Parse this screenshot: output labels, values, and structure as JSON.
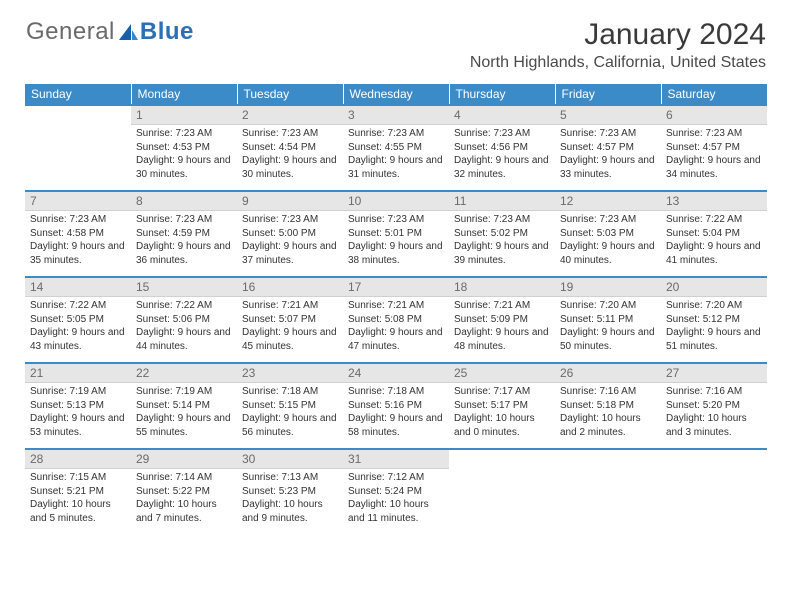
{
  "brand": {
    "part1": "General",
    "part2": "Blue"
  },
  "title": "January 2024",
  "subtitle": "North Highlands, California, United States",
  "colors": {
    "header_bg": "#3b8bc9",
    "header_text": "#ffffff",
    "daynum_bg": "#e6e6e6",
    "text": "#333333"
  },
  "weekdays": [
    "Sunday",
    "Monday",
    "Tuesday",
    "Wednesday",
    "Thursday",
    "Friday",
    "Saturday"
  ],
  "weeks": [
    [
      {
        "num": "",
        "sunrise": "",
        "sunset": "",
        "daylight": ""
      },
      {
        "num": "1",
        "sunrise": "Sunrise: 7:23 AM",
        "sunset": "Sunset: 4:53 PM",
        "daylight": "Daylight: 9 hours and 30 minutes."
      },
      {
        "num": "2",
        "sunrise": "Sunrise: 7:23 AM",
        "sunset": "Sunset: 4:54 PM",
        "daylight": "Daylight: 9 hours and 30 minutes."
      },
      {
        "num": "3",
        "sunrise": "Sunrise: 7:23 AM",
        "sunset": "Sunset: 4:55 PM",
        "daylight": "Daylight: 9 hours and 31 minutes."
      },
      {
        "num": "4",
        "sunrise": "Sunrise: 7:23 AM",
        "sunset": "Sunset: 4:56 PM",
        "daylight": "Daylight: 9 hours and 32 minutes."
      },
      {
        "num": "5",
        "sunrise": "Sunrise: 7:23 AM",
        "sunset": "Sunset: 4:57 PM",
        "daylight": "Daylight: 9 hours and 33 minutes."
      },
      {
        "num": "6",
        "sunrise": "Sunrise: 7:23 AM",
        "sunset": "Sunset: 4:57 PM",
        "daylight": "Daylight: 9 hours and 34 minutes."
      }
    ],
    [
      {
        "num": "7",
        "sunrise": "Sunrise: 7:23 AM",
        "sunset": "Sunset: 4:58 PM",
        "daylight": "Daylight: 9 hours and 35 minutes."
      },
      {
        "num": "8",
        "sunrise": "Sunrise: 7:23 AM",
        "sunset": "Sunset: 4:59 PM",
        "daylight": "Daylight: 9 hours and 36 minutes."
      },
      {
        "num": "9",
        "sunrise": "Sunrise: 7:23 AM",
        "sunset": "Sunset: 5:00 PM",
        "daylight": "Daylight: 9 hours and 37 minutes."
      },
      {
        "num": "10",
        "sunrise": "Sunrise: 7:23 AM",
        "sunset": "Sunset: 5:01 PM",
        "daylight": "Daylight: 9 hours and 38 minutes."
      },
      {
        "num": "11",
        "sunrise": "Sunrise: 7:23 AM",
        "sunset": "Sunset: 5:02 PM",
        "daylight": "Daylight: 9 hours and 39 minutes."
      },
      {
        "num": "12",
        "sunrise": "Sunrise: 7:23 AM",
        "sunset": "Sunset: 5:03 PM",
        "daylight": "Daylight: 9 hours and 40 minutes."
      },
      {
        "num": "13",
        "sunrise": "Sunrise: 7:22 AM",
        "sunset": "Sunset: 5:04 PM",
        "daylight": "Daylight: 9 hours and 41 minutes."
      }
    ],
    [
      {
        "num": "14",
        "sunrise": "Sunrise: 7:22 AM",
        "sunset": "Sunset: 5:05 PM",
        "daylight": "Daylight: 9 hours and 43 minutes."
      },
      {
        "num": "15",
        "sunrise": "Sunrise: 7:22 AM",
        "sunset": "Sunset: 5:06 PM",
        "daylight": "Daylight: 9 hours and 44 minutes."
      },
      {
        "num": "16",
        "sunrise": "Sunrise: 7:21 AM",
        "sunset": "Sunset: 5:07 PM",
        "daylight": "Daylight: 9 hours and 45 minutes."
      },
      {
        "num": "17",
        "sunrise": "Sunrise: 7:21 AM",
        "sunset": "Sunset: 5:08 PM",
        "daylight": "Daylight: 9 hours and 47 minutes."
      },
      {
        "num": "18",
        "sunrise": "Sunrise: 7:21 AM",
        "sunset": "Sunset: 5:09 PM",
        "daylight": "Daylight: 9 hours and 48 minutes."
      },
      {
        "num": "19",
        "sunrise": "Sunrise: 7:20 AM",
        "sunset": "Sunset: 5:11 PM",
        "daylight": "Daylight: 9 hours and 50 minutes."
      },
      {
        "num": "20",
        "sunrise": "Sunrise: 7:20 AM",
        "sunset": "Sunset: 5:12 PM",
        "daylight": "Daylight: 9 hours and 51 minutes."
      }
    ],
    [
      {
        "num": "21",
        "sunrise": "Sunrise: 7:19 AM",
        "sunset": "Sunset: 5:13 PM",
        "daylight": "Daylight: 9 hours and 53 minutes."
      },
      {
        "num": "22",
        "sunrise": "Sunrise: 7:19 AM",
        "sunset": "Sunset: 5:14 PM",
        "daylight": "Daylight: 9 hours and 55 minutes."
      },
      {
        "num": "23",
        "sunrise": "Sunrise: 7:18 AM",
        "sunset": "Sunset: 5:15 PM",
        "daylight": "Daylight: 9 hours and 56 minutes."
      },
      {
        "num": "24",
        "sunrise": "Sunrise: 7:18 AM",
        "sunset": "Sunset: 5:16 PM",
        "daylight": "Daylight: 9 hours and 58 minutes."
      },
      {
        "num": "25",
        "sunrise": "Sunrise: 7:17 AM",
        "sunset": "Sunset: 5:17 PM",
        "daylight": "Daylight: 10 hours and 0 minutes."
      },
      {
        "num": "26",
        "sunrise": "Sunrise: 7:16 AM",
        "sunset": "Sunset: 5:18 PM",
        "daylight": "Daylight: 10 hours and 2 minutes."
      },
      {
        "num": "27",
        "sunrise": "Sunrise: 7:16 AM",
        "sunset": "Sunset: 5:20 PM",
        "daylight": "Daylight: 10 hours and 3 minutes."
      }
    ],
    [
      {
        "num": "28",
        "sunrise": "Sunrise: 7:15 AM",
        "sunset": "Sunset: 5:21 PM",
        "daylight": "Daylight: 10 hours and 5 minutes."
      },
      {
        "num": "29",
        "sunrise": "Sunrise: 7:14 AM",
        "sunset": "Sunset: 5:22 PM",
        "daylight": "Daylight: 10 hours and 7 minutes."
      },
      {
        "num": "30",
        "sunrise": "Sunrise: 7:13 AM",
        "sunset": "Sunset: 5:23 PM",
        "daylight": "Daylight: 10 hours and 9 minutes."
      },
      {
        "num": "31",
        "sunrise": "Sunrise: 7:12 AM",
        "sunset": "Sunset: 5:24 PM",
        "daylight": "Daylight: 10 hours and 11 minutes."
      },
      {
        "num": "",
        "sunrise": "",
        "sunset": "",
        "daylight": ""
      },
      {
        "num": "",
        "sunrise": "",
        "sunset": "",
        "daylight": ""
      },
      {
        "num": "",
        "sunrise": "",
        "sunset": "",
        "daylight": ""
      }
    ]
  ]
}
